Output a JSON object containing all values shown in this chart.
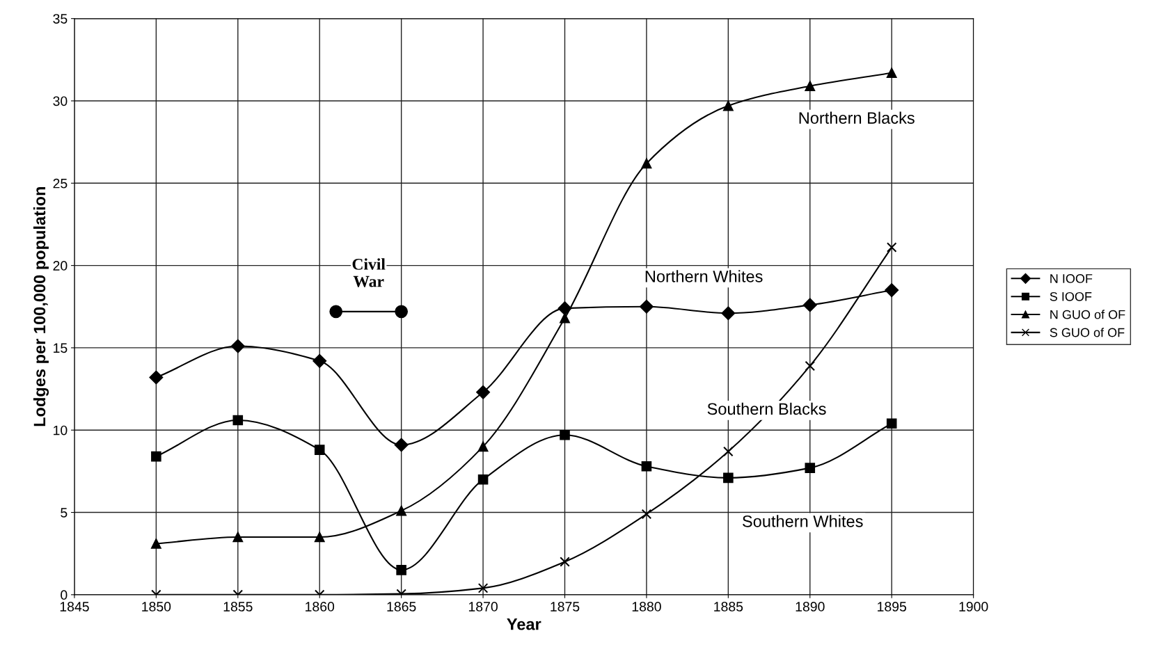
{
  "chart_data": {
    "type": "line",
    "xlabel": "Year",
    "ylabel": "Lodges per 100,000 population",
    "x": [
      1850,
      1855,
      1860,
      1865,
      1870,
      1875,
      1880,
      1885,
      1890,
      1895
    ],
    "series": [
      {
        "name": "N IOOF",
        "color": "#000000",
        "marker": "diamond",
        "values": [
          13.2,
          15.1,
          14.2,
          9.1,
          12.3,
          17.4,
          17.5,
          17.1,
          17.6,
          18.5
        ]
      },
      {
        "name": "S IOOF",
        "color": "#000000",
        "marker": "square",
        "values": [
          8.4,
          10.6,
          8.8,
          1.5,
          7.0,
          9.7,
          7.8,
          7.1,
          7.7,
          10.4
        ]
      },
      {
        "name": "N GUO of OF",
        "color": "#000000",
        "marker": "triangle",
        "values": [
          3.1,
          3.5,
          3.5,
          5.1,
          9.0,
          16.8,
          26.2,
          29.7,
          30.9,
          31.7
        ]
      },
      {
        "name": "S GUO of OF",
        "color": "#000000",
        "marker": "cross",
        "values": [
          0,
          0,
          0,
          0.05,
          0.4,
          2.0,
          4.9,
          8.7,
          13.9,
          21.1
        ]
      },
      {
        "color": "#000000",
        "marker": "circle",
        "x": [
          1861,
          1865
        ],
        "values": [
          17.2,
          17.2
        ]
      }
    ],
    "xlim": [
      1845,
      1900
    ],
    "xticks": [
      1845,
      1850,
      1855,
      1860,
      1865,
      1870,
      1875,
      1880,
      1885,
      1890,
      1895,
      1900
    ],
    "ylim": [
      0,
      35
    ],
    "yticks": [
      0,
      5,
      10,
      15,
      20,
      25,
      30,
      35
    ],
    "annotations": [
      {
        "text": "Civil\nWar",
        "x": 1863,
        "y": 17.2
      },
      "Northern Blacks",
      "Northern Whites",
      "Southern Blacks",
      "Southern Whites"
    ],
    "grid": true,
    "legend": "right",
    "line_style": "solid"
  }
}
